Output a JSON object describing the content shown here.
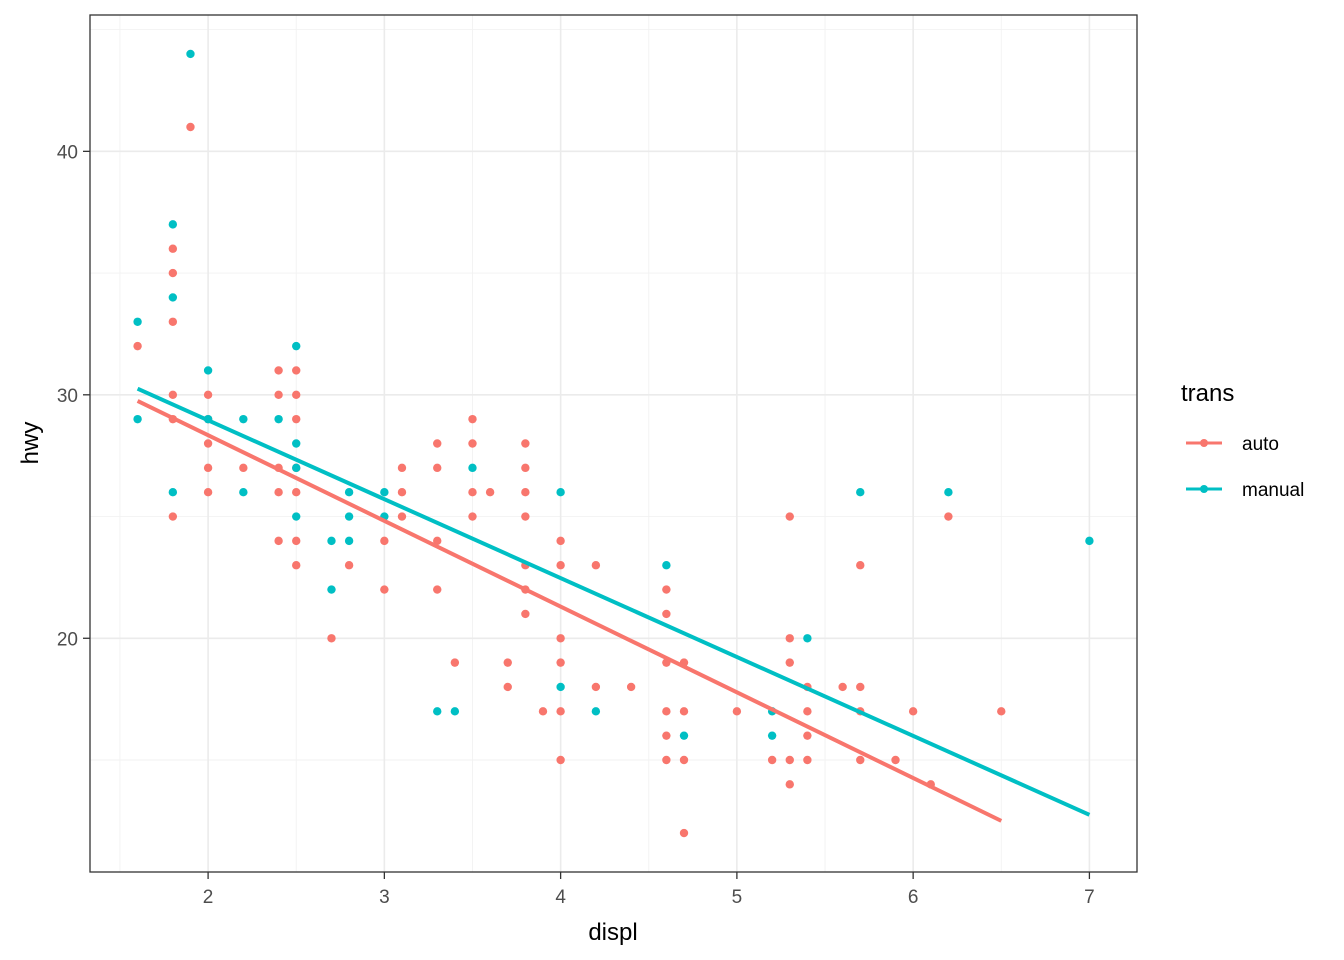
{
  "chart_data": {
    "type": "scatter",
    "title": "",
    "xlabel": "displ",
    "ylabel": "hwy",
    "xlim": [
      1.33,
      7.27
    ],
    "ylim": [
      10.4,
      45.6
    ],
    "x_ticks": [
      2,
      3,
      4,
      5,
      6,
      7
    ],
    "x_tick_labels": [
      "2",
      "3",
      "4",
      "5",
      "6",
      "7"
    ],
    "y_ticks": [
      20,
      30,
      40
    ],
    "y_tick_labels": [
      "20",
      "30",
      "40"
    ],
    "grid": true,
    "legend": {
      "title": "trans",
      "position": "right"
    },
    "series": [
      {
        "name": "auto",
        "color": "#F8766D",
        "points": [
          [
            1.6,
            32
          ],
          [
            1.8,
            25
          ],
          [
            1.8,
            29
          ],
          [
            1.8,
            30
          ],
          [
            1.8,
            33
          ],
          [
            1.8,
            35
          ],
          [
            1.8,
            36
          ],
          [
            1.9,
            41
          ],
          [
            2.0,
            26
          ],
          [
            2.0,
            27
          ],
          [
            2.0,
            28
          ],
          [
            2.0,
            29
          ],
          [
            2.0,
            30
          ],
          [
            2.2,
            27
          ],
          [
            2.4,
            24
          ],
          [
            2.4,
            26
          ],
          [
            2.4,
            27
          ],
          [
            2.4,
            30
          ],
          [
            2.4,
            31
          ],
          [
            2.5,
            23
          ],
          [
            2.5,
            24
          ],
          [
            2.5,
            26
          ],
          [
            2.5,
            27
          ],
          [
            2.5,
            29
          ],
          [
            2.5,
            30
          ],
          [
            2.5,
            31
          ],
          [
            2.7,
            20
          ],
          [
            2.8,
            23
          ],
          [
            3.0,
            22
          ],
          [
            3.0,
            24
          ],
          [
            3.1,
            25
          ],
          [
            3.1,
            26
          ],
          [
            3.1,
            27
          ],
          [
            3.3,
            22
          ],
          [
            3.3,
            24
          ],
          [
            3.3,
            27
          ],
          [
            3.3,
            28
          ],
          [
            3.4,
            19
          ],
          [
            3.5,
            25
          ],
          [
            3.5,
            26
          ],
          [
            3.5,
            28
          ],
          [
            3.5,
            29
          ],
          [
            3.6,
            26
          ],
          [
            3.7,
            18
          ],
          [
            3.7,
            19
          ],
          [
            3.8,
            21
          ],
          [
            3.8,
            22
          ],
          [
            3.8,
            23
          ],
          [
            3.8,
            25
          ],
          [
            3.8,
            26
          ],
          [
            3.8,
            27
          ],
          [
            3.8,
            28
          ],
          [
            3.9,
            17
          ],
          [
            4.0,
            15
          ],
          [
            4.0,
            17
          ],
          [
            4.0,
            19
          ],
          [
            4.0,
            20
          ],
          [
            4.0,
            23
          ],
          [
            4.0,
            24
          ],
          [
            4.2,
            18
          ],
          [
            4.2,
            23
          ],
          [
            4.4,
            18
          ],
          [
            4.6,
            15
          ],
          [
            4.6,
            16
          ],
          [
            4.6,
            17
          ],
          [
            4.6,
            19
          ],
          [
            4.6,
            21
          ],
          [
            4.6,
            22
          ],
          [
            4.7,
            12
          ],
          [
            4.7,
            15
          ],
          [
            4.7,
            17
          ],
          [
            4.7,
            19
          ],
          [
            5.0,
            17
          ],
          [
            5.2,
            15
          ],
          [
            5.3,
            14
          ],
          [
            5.3,
            15
          ],
          [
            5.3,
            19
          ],
          [
            5.3,
            20
          ],
          [
            5.3,
            25
          ],
          [
            5.4,
            15
          ],
          [
            5.4,
            16
          ],
          [
            5.4,
            17
          ],
          [
            5.4,
            18
          ],
          [
            5.6,
            18
          ],
          [
            5.7,
            15
          ],
          [
            5.7,
            17
          ],
          [
            5.7,
            18
          ],
          [
            5.7,
            23
          ],
          [
            5.9,
            15
          ],
          [
            6.0,
            17
          ],
          [
            6.1,
            14
          ],
          [
            6.2,
            25
          ],
          [
            6.5,
            17
          ]
        ],
        "fit_line": [
          [
            1.6,
            29.75
          ],
          [
            6.5,
            12.5
          ]
        ]
      },
      {
        "name": "manual",
        "color": "#00BFC4",
        "points": [
          [
            1.6,
            29
          ],
          [
            1.6,
            33
          ],
          [
            1.8,
            26
          ],
          [
            1.8,
            34
          ],
          [
            1.8,
            37
          ],
          [
            1.9,
            44
          ],
          [
            2.0,
            29
          ],
          [
            2.0,
            31
          ],
          [
            2.2,
            26
          ],
          [
            2.2,
            29
          ],
          [
            2.4,
            29
          ],
          [
            2.5,
            25
          ],
          [
            2.5,
            27
          ],
          [
            2.5,
            28
          ],
          [
            2.5,
            32
          ],
          [
            2.7,
            22
          ],
          [
            2.7,
            24
          ],
          [
            2.8,
            24
          ],
          [
            2.8,
            25
          ],
          [
            2.8,
            26
          ],
          [
            3.0,
            25
          ],
          [
            3.0,
            26
          ],
          [
            3.3,
            17
          ],
          [
            3.4,
            17
          ],
          [
            3.5,
            27
          ],
          [
            4.0,
            18
          ],
          [
            4.0,
            26
          ],
          [
            4.2,
            17
          ],
          [
            4.6,
            23
          ],
          [
            4.7,
            16
          ],
          [
            5.2,
            16
          ],
          [
            5.2,
            17
          ],
          [
            5.4,
            20
          ],
          [
            5.7,
            26
          ],
          [
            6.2,
            26
          ],
          [
            7.0,
            24
          ]
        ],
        "fit_line": [
          [
            1.6,
            30.25
          ],
          [
            7.0,
            12.75
          ]
        ]
      }
    ]
  }
}
